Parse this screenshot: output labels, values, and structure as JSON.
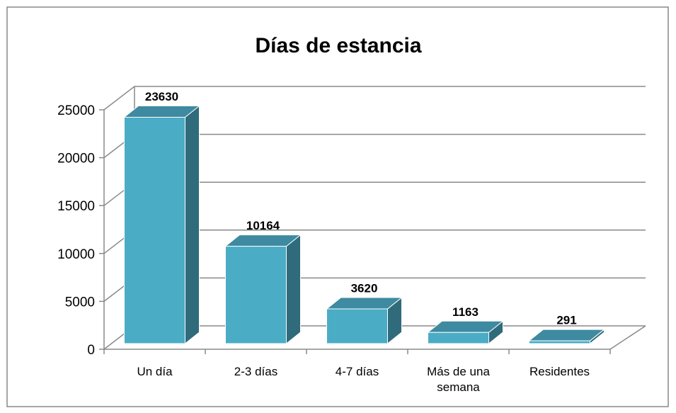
{
  "chart_data": {
    "type": "bar3d",
    "title": "Días de estancia",
    "categories": [
      "Un día",
      "2-3 días",
      "4-7 días",
      "Más de una semana",
      "Residentes"
    ],
    "values": [
      23630,
      10164,
      3620,
      1163,
      291
    ],
    "color": "#4bacc6",
    "ylim": [
      0,
      25000
    ],
    "yticks": [
      0,
      5000,
      10000,
      15000,
      20000,
      25000
    ],
    "grid": true
  }
}
